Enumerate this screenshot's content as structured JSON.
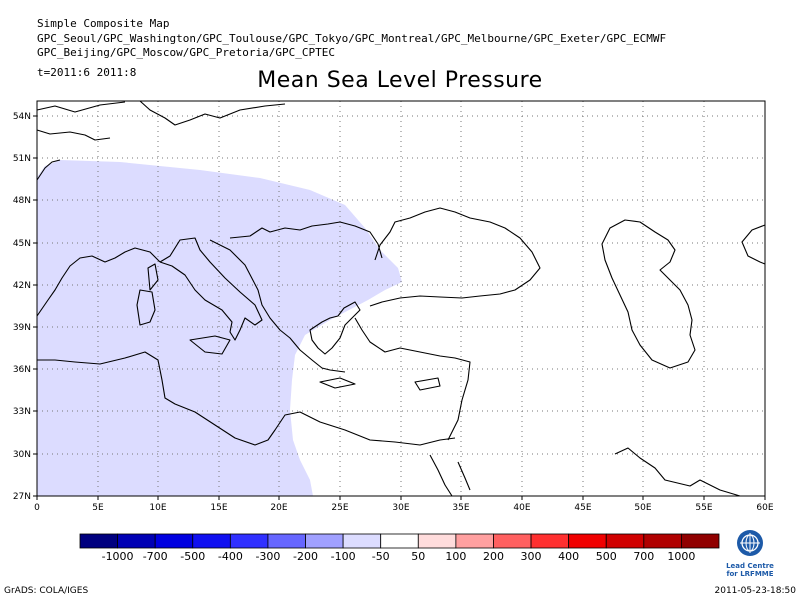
{
  "header": {
    "line1": "Simple Composite Map",
    "line2": "GPC_Seoul/GPC_Washington/GPC_Toulouse/GPC_Tokyo/GPC_Montreal/GPC_Melbourne/GPC_Exeter/GPC_ECMWF",
    "line3": "GPC_Beijing/GPC_Moscow/GPC_Pretoria/GPC_CPTEC",
    "time": "t=2011:6 2011:8"
  },
  "title": "Mean Sea Level Pressure",
  "map": {
    "lat_labels": [
      "54N",
      "51N",
      "48N",
      "45N",
      "42N",
      "39N",
      "36N",
      "33N",
      "30N",
      "27N"
    ],
    "lon_labels": [
      "0",
      "5E",
      "10E",
      "15E",
      "20E",
      "25E",
      "30E",
      "35E",
      "40E",
      "45E",
      "50E",
      "55E",
      "60E"
    ],
    "shaded_category": "-100 to -50"
  },
  "colorbar": {
    "labels": [
      "-1000",
      "-700",
      "-500",
      "-400",
      "-300",
      "-200",
      "-100",
      "-50",
      "50",
      "100",
      "200",
      "300",
      "400",
      "500",
      "700",
      "1000"
    ],
    "colors": [
      "#00007f",
      "#0000b4",
      "#0000e0",
      "#1010f0",
      "#3030ff",
      "#6666ff",
      "#a0a0ff",
      "#dcdcff",
      "#ffffff",
      "#ffdcdc",
      "#ffa0a0",
      "#ff6060",
      "#ff3030",
      "#f00000",
      "#d00000",
      "#b00000",
      "#900000"
    ]
  },
  "logo": {
    "text1": "Lead Centre",
    "text2": "for LRFMME"
  },
  "footer": {
    "left": "GrADS: COLA/IGES",
    "right": "2011-05-23-18:50"
  }
}
